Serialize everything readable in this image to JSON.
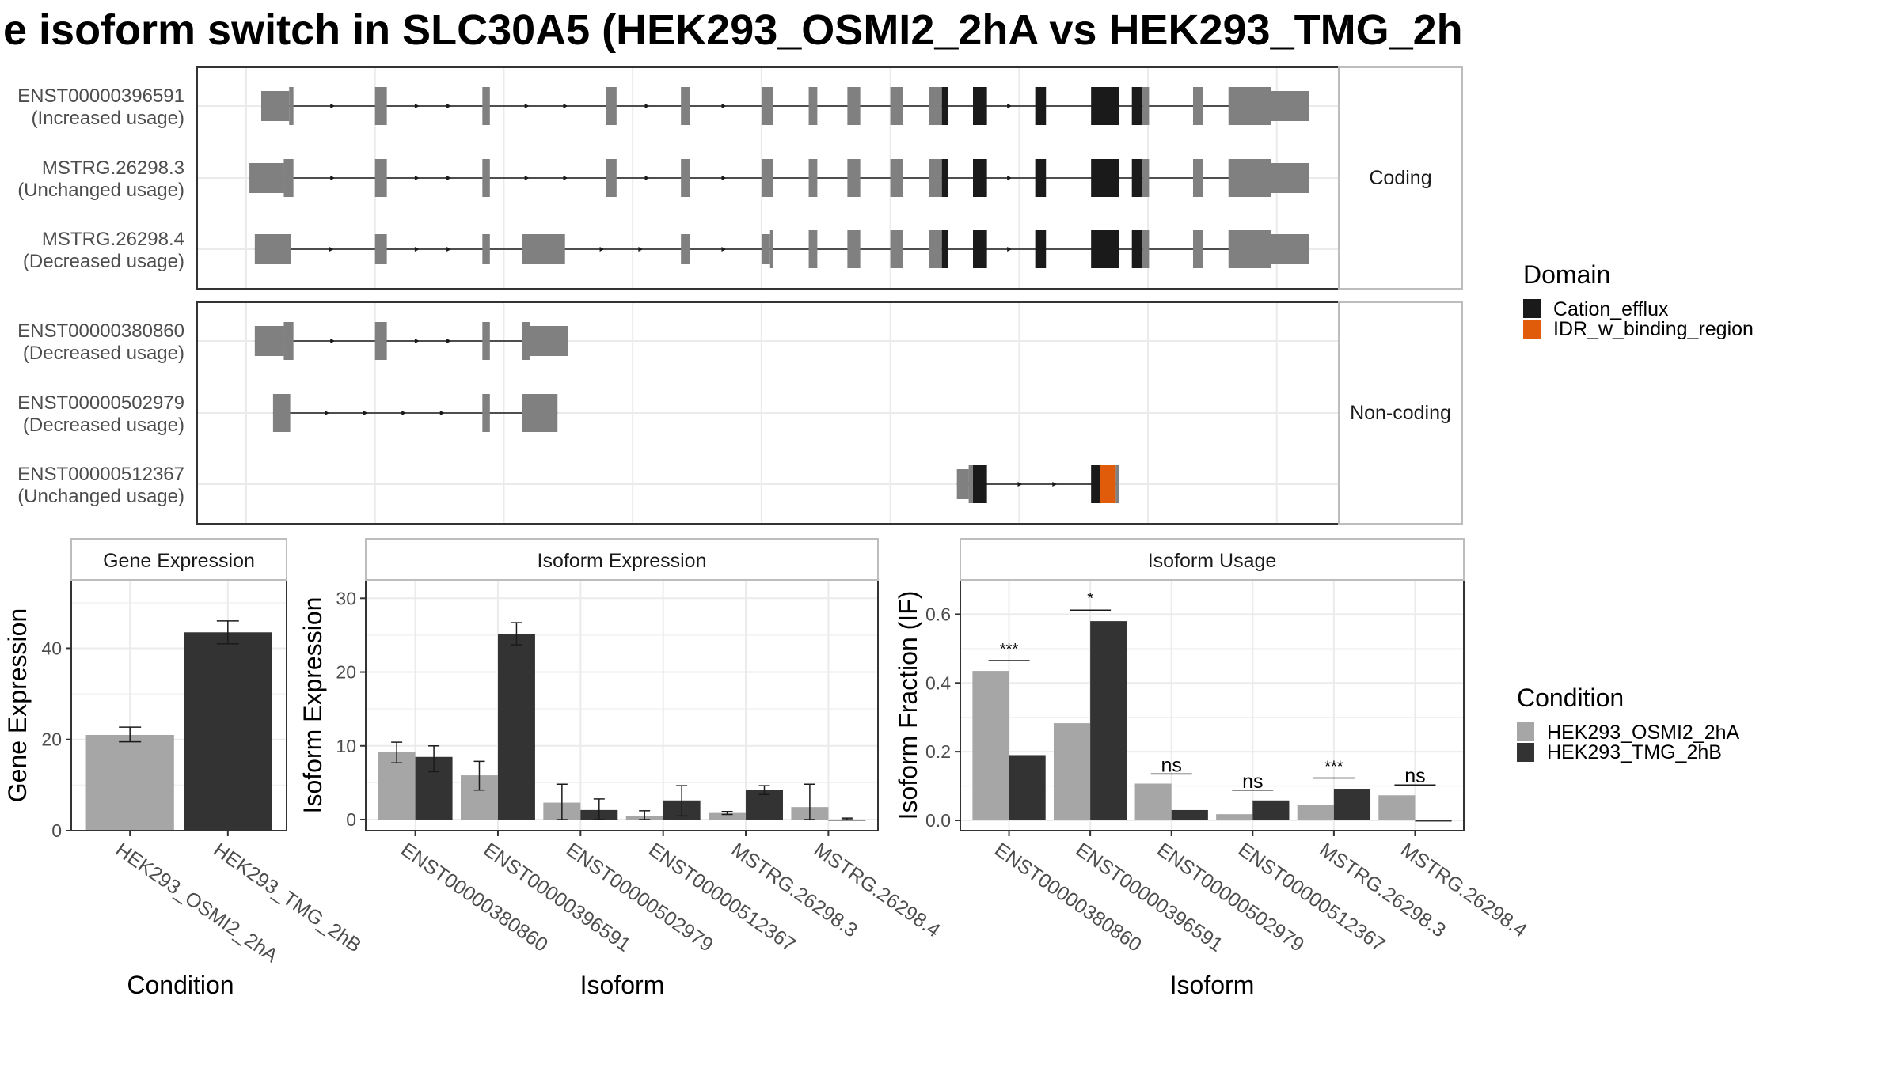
{
  "title": "e isoform switch in SLC30A5 (HEK293_OSMI2_2hA vs HEK293_TMG_2h",
  "colors": {
    "exon": "#808080",
    "cation_efflux": "#1a1a1a",
    "idr": "#e05c0a",
    "osmi": "#a6a6a6",
    "tmg": "#333333",
    "panel_border": "#333333",
    "grid": "#ebebeb",
    "strip_border": "#bdbdbd"
  },
  "structure": {
    "genomic_range": [
      0,
      100
    ],
    "groups": [
      {
        "label": "Coding",
        "isoforms": [
          {
            "id": "ENST00000396591",
            "usage": "(Increased usage)",
            "exons": [
              [
                1.4,
                4.0,
                "s"
              ],
              [
                4.0,
                4.4,
                "t"
              ],
              [
                12.0,
                13.1,
                "t"
              ],
              [
                22.0,
                22.7,
                "t"
              ],
              [
                33.5,
                34.5,
                "t"
              ],
              [
                40.5,
                41.3,
                "t"
              ],
              [
                48.0,
                49.1,
                "t"
              ],
              [
                52.4,
                53.2,
                "t"
              ],
              [
                56.0,
                57.2,
                "t"
              ],
              [
                60.0,
                61.2,
                "t"
              ],
              [
                63.6,
                64.8,
                "t"
              ],
              [
                64.8,
                65.4,
                "d"
              ],
              [
                67.7,
                69.0,
                "d"
              ],
              [
                73.5,
                74.5,
                "d"
              ],
              [
                78.7,
                81.3,
                "d"
              ],
              [
                82.5,
                83.5,
                "d"
              ],
              [
                83.5,
                84.1,
                "t"
              ],
              [
                88.2,
                89.1,
                "t"
              ],
              [
                91.5,
                95.5,
                "t"
              ],
              [
                95.5,
                99.0,
                "s"
              ]
            ]
          },
          {
            "id": "MSTRG.26298.3",
            "usage": "(Unchanged usage)",
            "exons": [
              [
                0.3,
                3.5,
                "s"
              ],
              [
                3.5,
                4.4,
                "t"
              ],
              [
                12.0,
                13.1,
                "t"
              ],
              [
                22.0,
                22.7,
                "t"
              ],
              [
                33.5,
                34.5,
                "t"
              ],
              [
                40.5,
                41.3,
                "t"
              ],
              [
                48.0,
                49.1,
                "t"
              ],
              [
                52.4,
                53.2,
                "t"
              ],
              [
                56.0,
                57.2,
                "t"
              ],
              [
                60.0,
                61.2,
                "t"
              ],
              [
                63.6,
                64.8,
                "t"
              ],
              [
                64.8,
                65.4,
                "d"
              ],
              [
                67.7,
                69.0,
                "d"
              ],
              [
                73.5,
                74.5,
                "d"
              ],
              [
                78.7,
                81.3,
                "d"
              ],
              [
                82.5,
                83.5,
                "d"
              ],
              [
                83.5,
                84.1,
                "t"
              ],
              [
                88.2,
                89.1,
                "t"
              ],
              [
                91.5,
                95.5,
                "t"
              ],
              [
                95.5,
                99.0,
                "s"
              ]
            ]
          },
          {
            "id": "MSTRG.26298.4",
            "usage": "(Decreased usage)",
            "exons": [
              [
                0.8,
                4.2,
                "s"
              ],
              [
                12.0,
                13.1,
                "s"
              ],
              [
                22.0,
                22.7,
                "s"
              ],
              [
                25.7,
                29.7,
                "s"
              ],
              [
                40.5,
                41.3,
                "s"
              ],
              [
                48.0,
                48.8,
                "s"
              ],
              [
                48.8,
                49.1,
                "t"
              ],
              [
                52.4,
                53.2,
                "t"
              ],
              [
                56.0,
                57.2,
                "t"
              ],
              [
                60.0,
                61.2,
                "t"
              ],
              [
                63.6,
                64.8,
                "t"
              ],
              [
                64.8,
                65.4,
                "d"
              ],
              [
                67.7,
                69.0,
                "d"
              ],
              [
                73.5,
                74.5,
                "d"
              ],
              [
                78.7,
                81.3,
                "d"
              ],
              [
                82.5,
                83.5,
                "d"
              ],
              [
                83.5,
                84.1,
                "t"
              ],
              [
                88.2,
                89.1,
                "t"
              ],
              [
                91.5,
                95.5,
                "t"
              ],
              [
                95.5,
                99.0,
                "s"
              ]
            ]
          }
        ]
      },
      {
        "label": "Non-coding",
        "isoforms": [
          {
            "id": "ENST00000380860",
            "usage": "(Decreased usage)",
            "exons": [
              [
                0.8,
                3.5,
                "s"
              ],
              [
                3.5,
                4.4,
                "t"
              ],
              [
                12.0,
                13.1,
                "t"
              ],
              [
                22.0,
                22.7,
                "t"
              ],
              [
                25.7,
                26.4,
                "t"
              ],
              [
                26.4,
                30.0,
                "s"
              ]
            ]
          },
          {
            "id": "ENST00000502979",
            "usage": "(Decreased usage)",
            "exons": [
              [
                2.5,
                4.1,
                "t"
              ],
              [
                22.0,
                22.7,
                "t"
              ],
              [
                25.7,
                29.0,
                "t"
              ]
            ]
          },
          {
            "id": "ENST00000512367",
            "usage": "(Unchanged usage)",
            "exons": [
              [
                66.2,
                67.3,
                "s"
              ],
              [
                67.3,
                67.7,
                "t"
              ],
              [
                67.7,
                69.0,
                "d"
              ],
              [
                78.7,
                79.5,
                "d"
              ],
              [
                79.5,
                81.0,
                "i"
              ],
              [
                81.0,
                81.3,
                "t"
              ]
            ]
          }
        ]
      }
    ]
  },
  "legend_domain": {
    "title": "Domain",
    "items": [
      {
        "label": "Cation_efflux",
        "color": "#1a1a1a"
      },
      {
        "label": "IDR_w_binding_region",
        "color": "#e05c0a"
      }
    ]
  },
  "legend_condition": {
    "title": "Condition",
    "items": [
      {
        "label": "HEK293_OSMI2_2hA",
        "color": "#a6a6a6"
      },
      {
        "label": "HEK293_TMG_2hB",
        "color": "#333333"
      }
    ]
  },
  "chart_data": [
    {
      "type": "bar",
      "title": "Gene Expression",
      "xlabel": "Condition",
      "ylabel": "Gene Expression",
      "categories": [
        "HEK293_OSMI2_2hA",
        "HEK293_TMG_2hB"
      ],
      "values": [
        21,
        43.5
      ],
      "errors": [
        [
          19.5,
          22.7
        ],
        [
          41,
          46
        ]
      ],
      "ylim": [
        0,
        55
      ],
      "yticks": [
        0,
        20,
        40
      ]
    },
    {
      "type": "bar",
      "title": "Isoform Expression",
      "xlabel": "Isoform",
      "ylabel": "Isoform Expression",
      "categories": [
        "ENST00000380860",
        "ENST00000396591",
        "ENST00000502979",
        "ENST00000512367",
        "MSTRG.26298.3",
        "MSTRG.26298.4"
      ],
      "series": [
        {
          "name": "HEK293_OSMI2_2hA",
          "values": [
            9.2,
            6.0,
            2.3,
            0.5,
            0.9,
            1.7
          ],
          "errors": [
            [
              7.7,
              10.5
            ],
            [
              4.0,
              7.9
            ],
            [
              0,
              4.8
            ],
            [
              0,
              1.2
            ],
            [
              0.7,
              1.1
            ],
            [
              0,
              4.8
            ]
          ]
        },
        {
          "name": "HEK293_TMG_2hB",
          "values": [
            8.5,
            25.2,
            1.3,
            2.6,
            4.0,
            0.0
          ],
          "errors": [
            [
              6.5,
              10.0
            ],
            [
              23.7,
              26.7
            ],
            [
              0,
              2.8
            ],
            [
              0.5,
              4.6
            ],
            [
              3.4,
              4.6
            ],
            [
              0,
              0.2
            ]
          ]
        }
      ],
      "ylim": [
        -1.5,
        32.5
      ],
      "yticks": [
        0,
        10,
        20,
        30
      ]
    },
    {
      "type": "bar",
      "title": "Isoform Usage",
      "xlabel": "Isoform",
      "ylabel": "Isoform Fraction (IF)",
      "categories": [
        "ENST00000380860",
        "ENST00000396591",
        "ENST00000502979",
        "ENST00000512367",
        "MSTRG.26298.3",
        "MSTRG.26298.4"
      ],
      "series": [
        {
          "name": "HEK293_OSMI2_2hA",
          "values": [
            0.435,
            0.283,
            0.107,
            0.018,
            0.045,
            0.073
          ]
        },
        {
          "name": "HEK293_TMG_2hB",
          "values": [
            0.19,
            0.58,
            0.03,
            0.058,
            0.092,
            0.0
          ]
        }
      ],
      "significance": [
        {
          "label": "***",
          "line": 0.465
        },
        {
          "label": "*",
          "line": 0.612
        },
        {
          "label": "ns",
          "line": 0.135
        },
        {
          "label": "ns",
          "line": 0.088
        },
        {
          "label": "***",
          "line": 0.123
        },
        {
          "label": "ns",
          "line": 0.103
        }
      ],
      "ylim": [
        -0.03,
        0.7
      ],
      "yticks": [
        0.0,
        0.2,
        0.4,
        0.6
      ],
      "ytick_labels": [
        "0.0",
        "0.2",
        "0.4",
        "0.6"
      ]
    }
  ]
}
